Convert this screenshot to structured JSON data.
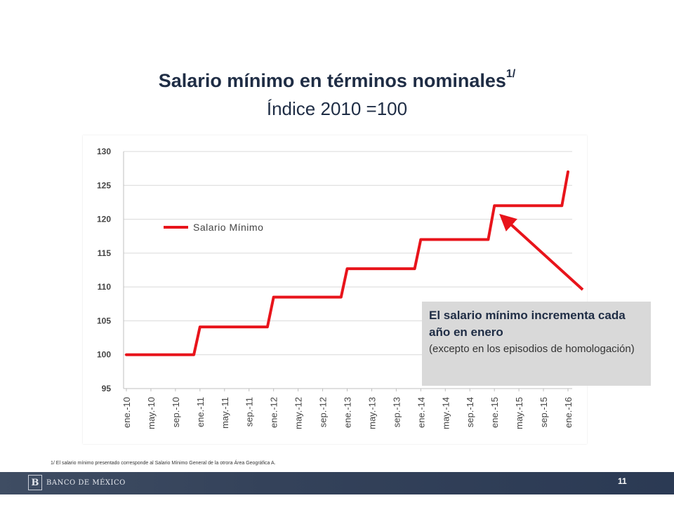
{
  "slide": {
    "title": "Salario mínimo en términos nominales",
    "title_superscript": "1/",
    "subtitle": "Índice 2010 =100",
    "footnote": "1/ El salario mínimo presentado corresponde al Salario Mínimo General de la otrora Área Geográfica A.",
    "page_number": "11",
    "logo_text": "BANCO DE MÉXICO"
  },
  "callout": {
    "main": "El salario mínimo incrementa cada año en enero",
    "sub": "(excepto en los episodios de homologación)"
  },
  "chart_data": {
    "type": "line",
    "title": "Salario mínimo en términos nominales",
    "subtitle": "Índice 2010 =100",
    "xlabel": "",
    "ylabel": "",
    "ylim": [
      95,
      130
    ],
    "yticks": [
      95,
      100,
      105,
      110,
      115,
      120,
      125,
      130
    ],
    "grid": true,
    "legend": "top-left",
    "x_tick_labels": [
      "ene.-10",
      "may.-10",
      "sep.-10",
      "ene.-11",
      "may.-11",
      "sep.-11",
      "ene.-12",
      "may.-12",
      "sep.-12",
      "ene.-13",
      "may.-13",
      "sep.-13",
      "ene.-14",
      "may.-14",
      "sep.-14",
      "ene.-15",
      "may.-15",
      "sep.-15",
      "ene.-16"
    ],
    "series": [
      {
        "name": "Salario Mínimo",
        "color": "#e8141b",
        "points": [
          {
            "x": "2010-01",
            "y": 100
          },
          {
            "x": "2010-12",
            "y": 100
          },
          {
            "x": "2011-01",
            "y": 104.1
          },
          {
            "x": "2011-12",
            "y": 104.1
          },
          {
            "x": "2012-01",
            "y": 108.5
          },
          {
            "x": "2012-12",
            "y": 108.5
          },
          {
            "x": "2013-01",
            "y": 112.7
          },
          {
            "x": "2013-12",
            "y": 112.7
          },
          {
            "x": "2014-01",
            "y": 117.0
          },
          {
            "x": "2014-12",
            "y": 117.0
          },
          {
            "x": "2015-01",
            "y": 122.0
          },
          {
            "x": "2015-12",
            "y": 122.0
          },
          {
            "x": "2016-01",
            "y": 127.0
          }
        ]
      }
    ]
  }
}
